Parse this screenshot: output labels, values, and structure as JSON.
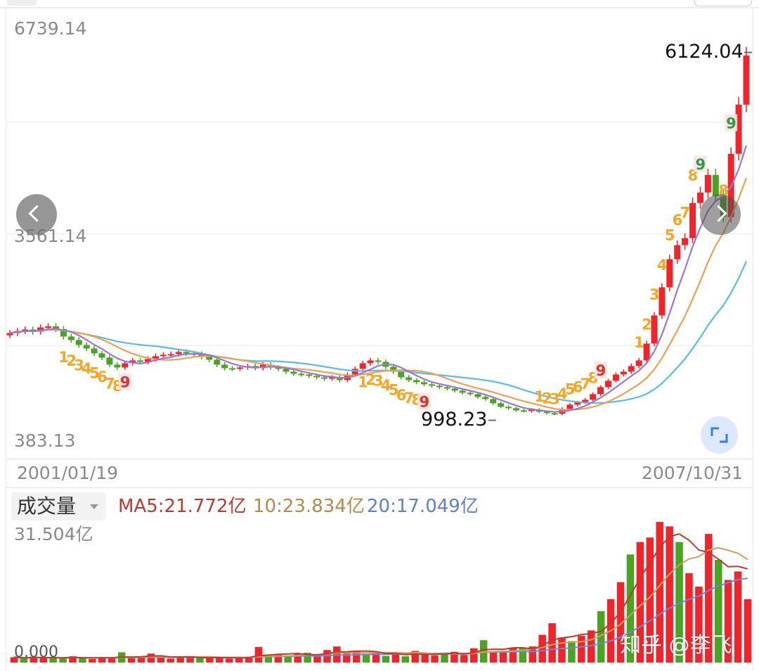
{
  "price_chart": {
    "y_max_label": "6739.14",
    "y_mid_label": "3561.14",
    "y_min_label": "383.13",
    "high_marker": "6124.04",
    "low_marker": "998.23",
    "start_date": "2001/01/19",
    "end_date": "2007/10/31"
  },
  "volume_panel": {
    "selector_label": "成交量",
    "ma5_legend": "MA5:21.772亿",
    "ma10_legend": "10:23.834亿",
    "ma20_legend": "20:17.049亿",
    "max_label": "31.504亿",
    "zero_label": "0.000"
  },
  "watermark": "知乎 @李飞",
  "colors": {
    "up": "#f0242a",
    "down": "#4aa321",
    "ma5": "#9b77d6",
    "ma10": "#f0a14e",
    "ma20": "#58bde8",
    "vol_ma5": "#c0392b",
    "vol_ma10": "#c9a15a",
    "vol_ma20": "#6f86d6",
    "td_setup": "#f5a623",
    "td_nine_red": "#e0312f",
    "td_nine_green": "#2a9d4a"
  },
  "icons": {
    "prev": "chevron-left-icon",
    "next": "chevron-right-icon",
    "expand": "expand-icon"
  },
  "chart_data": {
    "type": "candlestick",
    "x_range": [
      "2001/01/19",
      "2007/10/31"
    ],
    "y_range": [
      383.13,
      6739.14
    ],
    "y_ticks": [
      6739.14,
      3561.14,
      383.13
    ],
    "extremes": {
      "high": 6124.04,
      "low": 998.23
    },
    "close_series": [
      2150,
      2180,
      2200,
      2170,
      2230,
      2245,
      2205,
      2100,
      2050,
      1980,
      1930,
      1860,
      1800,
      1700,
      1660,
      1720,
      1760,
      1740,
      1780,
      1820,
      1840,
      1850,
      1880,
      1860,
      1850,
      1810,
      1770,
      1700,
      1650,
      1640,
      1660,
      1680,
      1650,
      1700,
      1660,
      1640,
      1600,
      1570,
      1560,
      1540,
      1520,
      1500,
      1520,
      1480,
      1560,
      1640,
      1720,
      1760,
      1740,
      1670,
      1600,
      1520,
      1480,
      1450,
      1420,
      1400,
      1380,
      1360,
      1330,
      1300,
      1280,
      1240,
      1210,
      1150,
      1100,
      1080,
      1050,
      1040,
      1060,
      1030,
      1010,
      1000,
      1070,
      1130,
      1160,
      1200,
      1280,
      1380,
      1470,
      1560,
      1600,
      1680,
      1760,
      2000,
      2400,
      2800,
      3200,
      3400,
      3500,
      4000,
      4150,
      4400,
      4100,
      3800,
      4700,
      5400,
      6100
    ],
    "td_sequences": [
      {
        "labels": [
          "1",
          "2",
          "3",
          "4",
          "5",
          "6",
          "7",
          "8",
          "9"
        ]
      },
      {
        "labels": [
          "1",
          "2",
          "3",
          "4",
          "5",
          "6",
          "7",
          "8",
          "9"
        ]
      },
      {
        "labels": [
          "1",
          "2",
          "3",
          "4",
          "5",
          "6",
          "7",
          "8",
          "9"
        ]
      },
      {
        "labels": [
          "1",
          "2",
          "3",
          "4",
          "5",
          "6",
          "7",
          "8",
          "9"
        ]
      },
      {
        "labels": [
          "8",
          "9"
        ]
      }
    ],
    "volume": {
      "max": 31.504,
      "unit": "亿",
      "ma5": 21.772,
      "ma10": 23.834,
      "ma20": 17.049,
      "bars": [
        1.2,
        0.9,
        1.3,
        1.0,
        1.1,
        0.9,
        1.4,
        1.0,
        0.8,
        1.2,
        0.9,
        2.3,
        1.0,
        1.1,
        2.0,
        1.2,
        0.9,
        1.1,
        1.3,
        1.0,
        1.2,
        1.0,
        0.9,
        1.1,
        1.3,
        3.5,
        1.6,
        1.8,
        1.4,
        1.9,
        2.2,
        1.5,
        2.8,
        3.6,
        2.0,
        2.7,
        1.8,
        2.2,
        1.5,
        1.9,
        1.4,
        2.6,
        1.8,
        1.6,
        2.1,
        2.4,
        1.7,
        3.2,
        5.0,
        2.6,
        2.4,
        3.2,
        3.4,
        3.6,
        6.2,
        8.8,
        5.6,
        4.8,
        6.0,
        7.2,
        11.5,
        14.2,
        18.0,
        24.2,
        27.0,
        28.0,
        31.5,
        30.5,
        27.0,
        20.0,
        17.0,
        28.8,
        23.0,
        18.5,
        20.4,
        14.2
      ],
      "down_bar_indices": [
        1,
        4,
        5,
        7,
        11,
        19,
        26,
        28,
        30,
        36,
        38,
        40,
        44,
        48,
        52,
        57,
        60,
        63,
        68,
        72
      ]
    }
  }
}
